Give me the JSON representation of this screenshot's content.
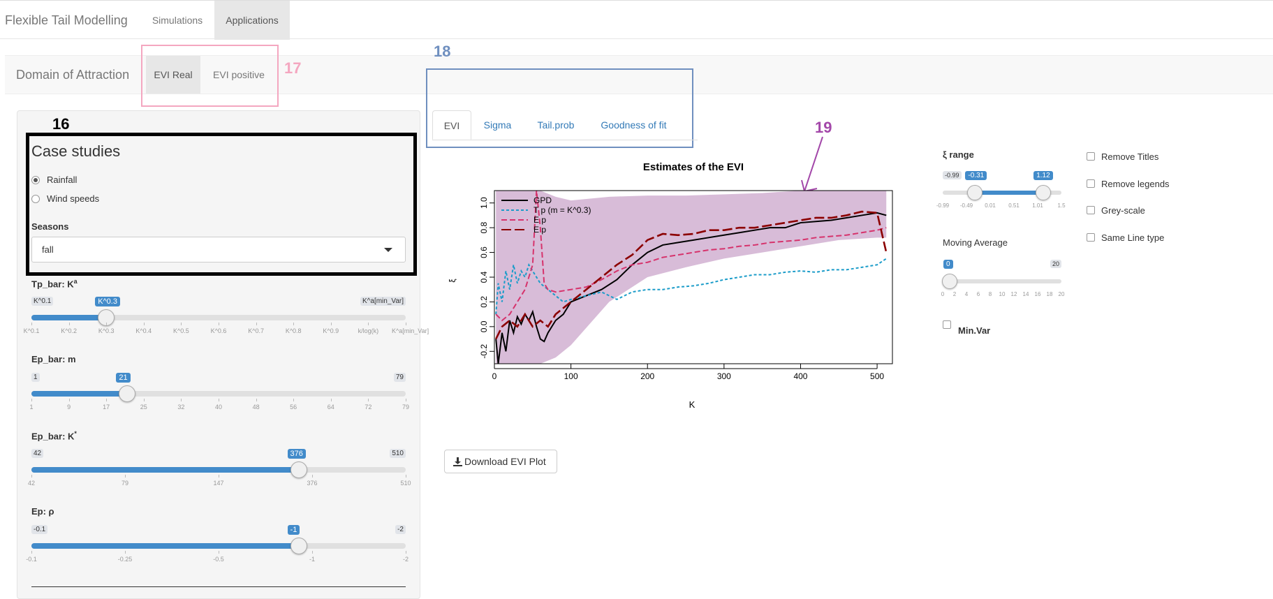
{
  "navbar": {
    "brand": "Flexible Tail Modelling",
    "tabs": [
      {
        "label": "Simulations"
      },
      {
        "label": "Applications"
      }
    ]
  },
  "subnav": {
    "brand": "Domain of Attraction",
    "tabs": [
      {
        "label": "EVI Real"
      },
      {
        "label": "EVI positive"
      }
    ]
  },
  "annotations": {
    "n16": "16",
    "n17": "17",
    "n18": "18",
    "n19": "19"
  },
  "sidebar": {
    "case_title": "Case studies",
    "radios": [
      {
        "label": "Rainfall",
        "checked": true
      },
      {
        "label": "Wind speeds",
        "checked": false
      }
    ],
    "seasons_label": "Seasons",
    "seasons_value": "fall",
    "sliders": [
      {
        "label": "Tp_bar: K",
        "sup": "a",
        "min": "K^0.1",
        "max": "K^a[min_Var]",
        "value": "K^0.3",
        "fraction": 0.2,
        "ticks": [
          "K^0.1",
          "K^0.2",
          "K^0.3",
          "K^0.4",
          "K^0.5",
          "K^0.6",
          "K^0.7",
          "K^0.8",
          "K^0.9",
          "k/log(k)",
          "K^a[min_Var]"
        ]
      },
      {
        "label": "Ep_bar: m",
        "sup": "",
        "min": "1",
        "max": "79",
        "value": "21",
        "fraction": 0.2564,
        "ticks": [
          "1",
          "9",
          "17",
          "25",
          "32",
          "40",
          "48",
          "56",
          "64",
          "72",
          "79"
        ]
      },
      {
        "label": "Ep_bar: K",
        "sup": "*",
        "min": "42",
        "max": "510",
        "value": "376",
        "fraction": 0.7137,
        "ticks": [
          "42",
          "79",
          "147",
          "376",
          "510"
        ]
      },
      {
        "label": "Ep: ρ",
        "sup": "",
        "min": "-0.1",
        "max": "-2",
        "value": "-1",
        "fraction": 0.7137,
        "ticks": [
          "-0.1",
          "-0.25",
          "-0.5",
          "-1",
          "-2"
        ]
      }
    ]
  },
  "main": {
    "tabs": [
      {
        "label": "EVI"
      },
      {
        "label": "Sigma"
      },
      {
        "label": "Tail.prob"
      },
      {
        "label": "Goodness of fit"
      }
    ],
    "download_label": "Download EVI Plot"
  },
  "right": {
    "xi_label": "ξ range",
    "xi_min": "-0.99",
    "xi_max": "1.5",
    "xi_low": "-0.31",
    "xi_high": "1.12",
    "xi_low_frac": 0.2731,
    "xi_high_frac": 0.8482,
    "xi_ticks": [
      "-0.99",
      "-0.49",
      "0.01",
      "0.51",
      "1.01",
      "1.5"
    ],
    "ma_label": "Moving Average",
    "ma_min": "0",
    "ma_max": "20",
    "ma_value": "0",
    "ma_frac": 0,
    "ma_ticks": [
      "0",
      "2",
      "4",
      "6",
      "8",
      "10",
      "12",
      "14",
      "16",
      "18",
      "20"
    ],
    "minvar_label": "Min.Var",
    "checks": [
      {
        "label": "Remove Titles"
      },
      {
        "label": "Remove legends"
      },
      {
        "label": "Grey-scale"
      },
      {
        "label": "Same Line type"
      }
    ]
  },
  "colors": {
    "band": "#d8bcd8",
    "gpd": "#000000",
    "tp": "#1b9cc9",
    "ep": "#d6336c",
    "ep2": "#8b0000",
    "accent": "#428bca"
  },
  "chart_data": {
    "type": "line",
    "title": "Estimates of the EVI",
    "xlabel": "K",
    "ylabel": "ξ",
    "xlim": [
      0,
      520
    ],
    "ylim": [
      -0.3,
      1.1
    ],
    "xticks": [
      0,
      100,
      200,
      300,
      400,
      500
    ],
    "yticks": [
      -0.2,
      0.0,
      0.2,
      0.4,
      0.6,
      0.8,
      1.0
    ],
    "legend": [
      "GPD",
      "T p (m = K^0.3)",
      "E p",
      "E p"
    ],
    "band": {
      "x": [
        2,
        10,
        20,
        40,
        60,
        80,
        100,
        150,
        200,
        250,
        300,
        350,
        400,
        450,
        500,
        512
      ],
      "upper": [
        1.1,
        1.1,
        1.1,
        1.1,
        1.1,
        1.05,
        1.02,
        1.05,
        1.06,
        1.06,
        1.07,
        1.08,
        1.1,
        1.1,
        1.1,
        1.1
      ],
      "lower": [
        -0.3,
        -0.3,
        -0.3,
        -0.3,
        -0.3,
        -0.25,
        -0.15,
        0.2,
        0.4,
        0.48,
        0.55,
        0.6,
        0.65,
        0.7,
        0.72,
        0.72
      ]
    },
    "series": [
      {
        "name": "GPD",
        "color": "#000000",
        "dash": "",
        "x": [
          2,
          5,
          10,
          15,
          20,
          25,
          30,
          35,
          40,
          45,
          50,
          55,
          60,
          65,
          70,
          80,
          90,
          100,
          120,
          140,
          160,
          180,
          200,
          220,
          240,
          260,
          280,
          300,
          320,
          340,
          360,
          380,
          400,
          420,
          440,
          460,
          480,
          500,
          512
        ],
        "y": [
          -0.1,
          -0.3,
          -0.05,
          -0.2,
          0.05,
          -0.05,
          0.08,
          0.02,
          0.1,
          0.05,
          0.12,
          0.0,
          -0.1,
          -0.12,
          -0.05,
          0.05,
          0.1,
          0.2,
          0.25,
          0.3,
          0.38,
          0.5,
          0.6,
          0.66,
          0.68,
          0.7,
          0.72,
          0.74,
          0.76,
          0.78,
          0.8,
          0.8,
          0.84,
          0.85,
          0.86,
          0.88,
          0.9,
          0.92,
          0.9
        ]
      },
      {
        "name": "T p (m = K^0.3)",
        "color": "#1b9cc9",
        "dash": "4,3",
        "x": [
          2,
          5,
          10,
          15,
          20,
          25,
          30,
          35,
          40,
          45,
          50,
          60,
          70,
          80,
          90,
          100,
          120,
          140,
          160,
          180,
          200,
          220,
          240,
          260,
          280,
          300,
          320,
          340,
          360,
          380,
          400,
          420,
          440,
          460,
          480,
          500,
          512
        ],
        "y": [
          0.1,
          0.35,
          0.2,
          0.45,
          0.3,
          0.5,
          0.35,
          0.45,
          0.4,
          0.5,
          0.45,
          0.35,
          0.3,
          0.25,
          0.2,
          0.22,
          0.25,
          0.28,
          0.22,
          0.28,
          0.3,
          0.3,
          0.32,
          0.33,
          0.35,
          0.38,
          0.4,
          0.42,
          0.42,
          0.44,
          0.45,
          0.44,
          0.46,
          0.46,
          0.48,
          0.5,
          0.55
        ]
      },
      {
        "name": "E p",
        "color": "#d6336c",
        "dash": "8,4",
        "x": [
          2,
          10,
          20,
          30,
          40,
          50,
          55,
          60,
          65,
          70,
          80,
          100,
          120,
          140,
          160,
          180,
          200,
          220,
          240,
          260,
          280,
          300,
          320,
          340,
          360,
          380,
          400,
          420,
          440,
          460,
          480,
          500,
          512
        ],
        "y": [
          0.1,
          0.05,
          0.1,
          0.2,
          0.3,
          0.5,
          1.1,
          0.8,
          0.35,
          0.3,
          0.28,
          0.3,
          0.32,
          0.38,
          0.45,
          0.5,
          0.52,
          0.56,
          0.58,
          0.6,
          0.62,
          0.63,
          0.65,
          0.66,
          0.68,
          0.69,
          0.7,
          0.72,
          0.73,
          0.74,
          0.76,
          0.78,
          0.8
        ]
      },
      {
        "name": "E p",
        "color": "#8b0000",
        "dash": "14,5",
        "x": [
          2,
          10,
          20,
          30,
          40,
          50,
          60,
          70,
          80,
          90,
          100,
          120,
          140,
          160,
          180,
          200,
          220,
          240,
          260,
          280,
          300,
          320,
          340,
          360,
          380,
          400,
          420,
          440,
          460,
          480,
          500,
          512
        ],
        "y": [
          -0.1,
          0.0,
          0.05,
          0.0,
          0.1,
          0.0,
          0.05,
          0.0,
          0.1,
          0.15,
          0.2,
          0.3,
          0.4,
          0.5,
          0.58,
          0.7,
          0.75,
          0.74,
          0.75,
          0.78,
          0.78,
          0.8,
          0.8,
          0.82,
          0.84,
          0.86,
          0.88,
          0.88,
          0.9,
          0.93,
          0.92,
          0.6
        ]
      }
    ]
  }
}
